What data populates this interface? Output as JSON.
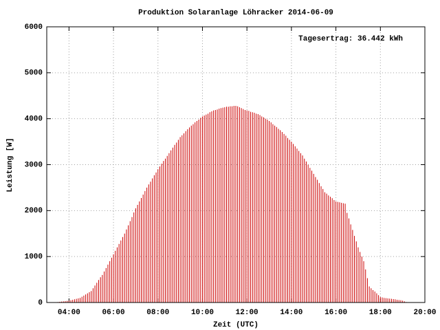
{
  "chart_data": {
    "type": "impulse",
    "title": "Produktion Solaranlage Löhracker 2014-06-09",
    "annotation": "Tagesertrag: 36.442 kWh",
    "x_label": "Zeit (UTC)",
    "y_label": "Leistung [W]",
    "color": "#cc0000",
    "grid": true,
    "xlim": [
      "03:00",
      "20:00"
    ],
    "xticks": [
      "04:00",
      "06:00",
      "08:00",
      "10:00",
      "12:00",
      "14:00",
      "16:00",
      "18:00",
      "20:00"
    ],
    "ylim": [
      0,
      6000
    ],
    "yticks": [
      0,
      1000,
      2000,
      3000,
      4000,
      5000,
      6000
    ],
    "x": [
      "03:30",
      "03:35",
      "03:40",
      "03:45",
      "03:50",
      "03:55",
      "04:00",
      "04:05",
      "04:10",
      "04:15",
      "04:20",
      "04:25",
      "04:30",
      "04:35",
      "04:40",
      "04:45",
      "04:50",
      "04:55",
      "05:00",
      "05:05",
      "05:10",
      "05:15",
      "05:20",
      "05:25",
      "05:30",
      "05:35",
      "05:40",
      "05:45",
      "05:50",
      "05:55",
      "06:00",
      "06:05",
      "06:10",
      "06:15",
      "06:20",
      "06:25",
      "06:30",
      "06:35",
      "06:40",
      "06:45",
      "06:50",
      "06:55",
      "07:00",
      "07:05",
      "07:10",
      "07:15",
      "07:20",
      "07:25",
      "07:30",
      "07:35",
      "07:40",
      "07:45",
      "07:50",
      "07:55",
      "08:00",
      "08:05",
      "08:10",
      "08:15",
      "08:20",
      "08:25",
      "08:30",
      "08:35",
      "08:40",
      "08:45",
      "08:50",
      "08:55",
      "09:00",
      "09:05",
      "09:10",
      "09:15",
      "09:20",
      "09:25",
      "09:30",
      "09:35",
      "09:40",
      "09:45",
      "09:50",
      "09:55",
      "10:00",
      "10:05",
      "10:10",
      "10:15",
      "10:20",
      "10:25",
      "10:30",
      "10:35",
      "10:40",
      "10:45",
      "10:50",
      "10:55",
      "11:00",
      "11:05",
      "11:10",
      "11:15",
      "11:20",
      "11:25",
      "11:30",
      "11:35",
      "11:40",
      "11:45",
      "11:50",
      "11:55",
      "12:00",
      "12:05",
      "12:10",
      "12:15",
      "12:20",
      "12:25",
      "12:30",
      "12:35",
      "12:40",
      "12:45",
      "12:50",
      "12:55",
      "13:00",
      "13:05",
      "13:10",
      "13:15",
      "13:20",
      "13:25",
      "13:30",
      "13:35",
      "13:40",
      "13:45",
      "13:50",
      "13:55",
      "14:00",
      "14:05",
      "14:10",
      "14:15",
      "14:20",
      "14:25",
      "14:30",
      "14:35",
      "14:40",
      "14:45",
      "14:50",
      "14:55",
      "15:00",
      "15:05",
      "15:10",
      "15:15",
      "15:20",
      "15:25",
      "15:30",
      "15:35",
      "15:40",
      "15:45",
      "15:50",
      "15:55",
      "16:00",
      "16:05",
      "16:10",
      "16:15",
      "16:20",
      "16:25",
      "16:30",
      "16:35",
      "16:40",
      "16:45",
      "16:50",
      "16:55",
      "17:00",
      "17:05",
      "17:10",
      "17:15",
      "17:20",
      "17:25",
      "17:30",
      "17:35",
      "17:40",
      "17:45",
      "17:50",
      "17:55",
      "18:00",
      "18:05",
      "18:10",
      "18:15",
      "18:20",
      "18:25",
      "18:30",
      "18:35",
      "18:40",
      "18:45",
      "18:50",
      "18:55",
      "19:00",
      "19:05",
      "19:10"
    ],
    "values": [
      10,
      15,
      20,
      25,
      30,
      35,
      40,
      50,
      60,
      70,
      80,
      90,
      100,
      125,
      150,
      175,
      200,
      225,
      250,
      310,
      370,
      430,
      490,
      550,
      600,
      675,
      750,
      825,
      900,
      975,
      1050,
      1125,
      1200,
      1275,
      1350,
      1425,
      1500,
      1590,
      1680,
      1770,
      1860,
      1960,
      2050,
      2125,
      2200,
      2275,
      2350,
      2425,
      2500,
      2570,
      2630,
      2700,
      2770,
      2830,
      2900,
      2960,
      3020,
      3080,
      3130,
      3190,
      3250,
      3310,
      3370,
      3430,
      3480,
      3540,
      3600,
      3640,
      3680,
      3730,
      3770,
      3810,
      3850,
      3880,
      3920,
      3950,
      3980,
      4020,
      4050,
      4070,
      4090,
      4110,
      4140,
      4160,
      4180,
      4190,
      4200,
      4220,
      4230,
      4240,
      4250,
      4260,
      4260,
      4270,
      4270,
      4280,
      4280,
      4270,
      4250,
      4230,
      4210,
      4190,
      4180,
      4170,
      4150,
      4140,
      4130,
      4110,
      4100,
      4080,
      4050,
      4030,
      4000,
      3980,
      3950,
      3920,
      3880,
      3850,
      3820,
      3780,
      3750,
      3710,
      3670,
      3630,
      3580,
      3540,
      3500,
      3450,
      3400,
      3350,
      3300,
      3250,
      3200,
      3130,
      3070,
      3000,
      2930,
      2870,
      2800,
      2730,
      2670,
      2600,
      2530,
      2470,
      2400,
      2370,
      2330,
      2300,
      2270,
      2230,
      2200,
      2190,
      2180,
      2170,
      2160,
      2150,
      1950,
      1830,
      1700,
      1580,
      1450,
      1330,
      1200,
      1100,
      1000,
      900,
      720,
      530,
      350,
      310,
      270,
      240,
      200,
      160,
      120,
      110,
      100,
      95,
      90,
      85,
      80,
      75,
      70,
      60,
      55,
      50,
      40,
      25,
      10
    ]
  }
}
